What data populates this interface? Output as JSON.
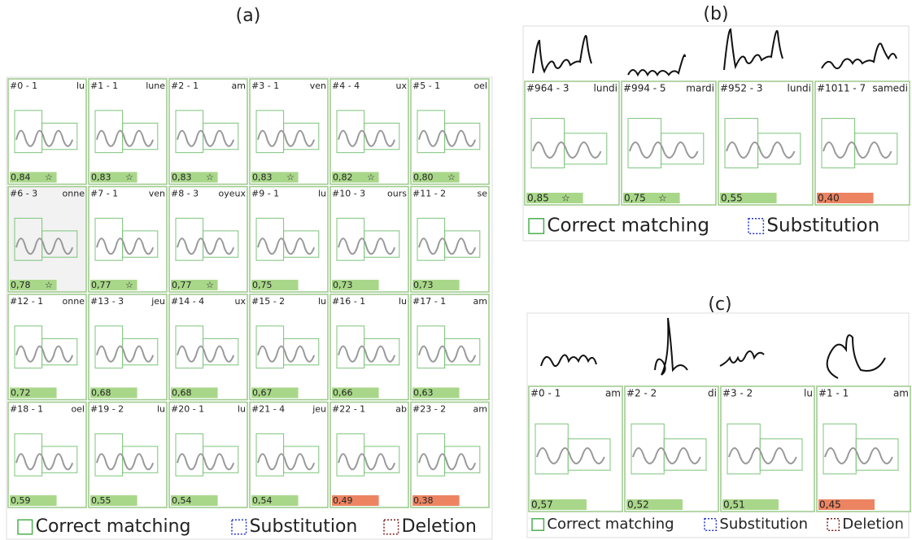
{
  "panels": [
    {
      "label": "(a)",
      "cells": [
        {
          "id": "#0 - 1",
          "word": "lu",
          "score": "0,84",
          "star": "☆",
          "color": "#a9d78a"
        },
        {
          "id": "#1 - 1",
          "word": "lune",
          "score": "0,83",
          "star": "☆",
          "color": "#a9d78a"
        },
        {
          "id": "#2 - 1",
          "word": "am",
          "score": "0,83",
          "star": "☆",
          "color": "#a9d78a"
        },
        {
          "id": "#3 - 1",
          "word": "ven",
          "score": "0,83",
          "star": "☆",
          "color": "#a9d78a"
        },
        {
          "id": "#4 - 4",
          "word": "ux",
          "score": "0,82",
          "star": "☆",
          "color": "#a9d78a"
        },
        {
          "id": "#5 - 1",
          "word": "oel",
          "score": "0,80",
          "star": "☆",
          "color": "#a9d78a"
        },
        {
          "id": "#6 - 3",
          "word": "onne",
          "score": "0,78",
          "star": "☆",
          "color": "#a9d78a",
          "background": "#f2f2f2"
        },
        {
          "id": "#7 - 1",
          "word": "ven",
          "score": "0,77",
          "star": "☆",
          "color": "#a9d78a"
        },
        {
          "id": "#8 - 3",
          "word": "oyeux",
          "score": "0,77",
          "star": "☆",
          "color": "#a9d78a"
        },
        {
          "id": "#9 - 1",
          "word": "lu",
          "score": "0,75",
          "color": "#a9d78a"
        },
        {
          "id": "#10 - 3",
          "word": "ours",
          "score": "0,73",
          "color": "#a9d78a"
        },
        {
          "id": "#11 - 2",
          "word": "se",
          "score": "0,73",
          "color": "#a9d78a"
        },
        {
          "id": "#12 - 1",
          "word": "onne",
          "score": "0,72",
          "color": "#a9d78a"
        },
        {
          "id": "#13 - 3",
          "word": "jeu",
          "score": "0,68",
          "color": "#a9d78a"
        },
        {
          "id": "#14 - 4",
          "word": "ux",
          "score": "0,68",
          "color": "#a9d78a"
        },
        {
          "id": "#15 - 2",
          "word": "lu",
          "score": "0,67",
          "color": "#a9d78a"
        },
        {
          "id": "#16 - 1",
          "word": "lu",
          "score": "0,66",
          "color": "#a9d78a"
        },
        {
          "id": "#17 - 1",
          "word": "am",
          "score": "0,63",
          "color": "#a9d78a"
        },
        {
          "id": "#18 - 1",
          "word": "oel",
          "score": "0,59",
          "color": "#a9d78a"
        },
        {
          "id": "#19 - 2",
          "word": "lu",
          "score": "0,55",
          "color": "#a9d78a"
        },
        {
          "id": "#20 - 1",
          "word": "lu",
          "score": "0,54",
          "color": "#a9d78a"
        },
        {
          "id": "#21 - 4",
          "word": "jeu",
          "score": "0,54",
          "color": "#a9d78a"
        },
        {
          "id": "#22 - 1",
          "word": "ab",
          "score": "0,49",
          "color": "#ec8462"
        },
        {
          "id": "#23 - 2",
          "word": "am",
          "score": "0,38",
          "color": "#ec8462"
        }
      ],
      "legend": [
        "Correct matching",
        "Substitution",
        "Deletion"
      ]
    },
    {
      "label": "(b)",
      "cells": [
        {
          "id": "#964 - 3",
          "word": "lundi",
          "score": "0,85",
          "star": "☆",
          "color": "#a9d78a"
        },
        {
          "id": "#994 - 5",
          "word": "mardi",
          "score": "0,75",
          "star": "☆",
          "color": "#a9d78a"
        },
        {
          "id": "#952 - 3",
          "word": "lundi",
          "score": "0,55",
          "color": "#a9d78a"
        },
        {
          "id": "#1011 - 7",
          "word": "samedi",
          "score": "0,40",
          "color": "#ec8462"
        }
      ],
      "legend": [
        "Correct matching",
        "Substitution"
      ]
    },
    {
      "label": "(c)",
      "cells": [
        {
          "id": "#0 - 1",
          "word": "am",
          "score": "0,57",
          "color": "#a9d78a"
        },
        {
          "id": "#2 - 2",
          "word": "di",
          "score": "0,52",
          "color": "#a9d78a"
        },
        {
          "id": "#3 - 2",
          "word": "lu",
          "score": "0,51",
          "color": "#a9d78a"
        },
        {
          "id": "#1 - 1",
          "word": "am",
          "score": "0,45",
          "color": "#ec8462"
        }
      ],
      "legend": [
        "Correct matching",
        "Substitution",
        "Deletion"
      ]
    }
  ]
}
